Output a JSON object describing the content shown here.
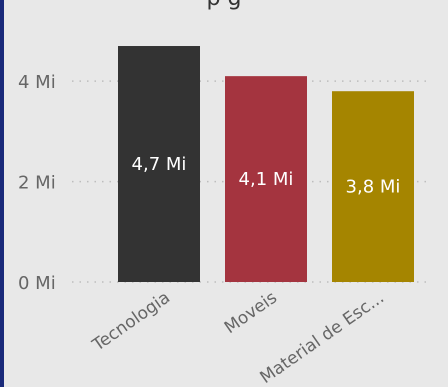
{
  "chart_data": {
    "type": "bar",
    "categories": [
      "Tecnologia",
      "Moveis",
      "Material de Esc..."
    ],
    "values": [
      4.7,
      4.1,
      3.8
    ],
    "data_labels": [
      "4,7 Mi",
      "4,1 Mi",
      "3,8 Mi"
    ],
    "y_ticks": [
      {
        "value": 0,
        "label": "0 Mi"
      },
      {
        "value": 2,
        "label": "2 Mi"
      },
      {
        "value": 4,
        "label": "4 Mi"
      }
    ],
    "ylim": [
      0,
      4.8
    ],
    "grid": true,
    "xlabel": "",
    "ylabel": "",
    "colors": [
      "#333333",
      "#a4343f",
      "#a58500"
    ],
    "background": "#e8e8e8",
    "grid_color": "#bdbdbd",
    "tick_color": "#666666",
    "label_color": "#ffffff"
  },
  "title_partial": "p   g"
}
